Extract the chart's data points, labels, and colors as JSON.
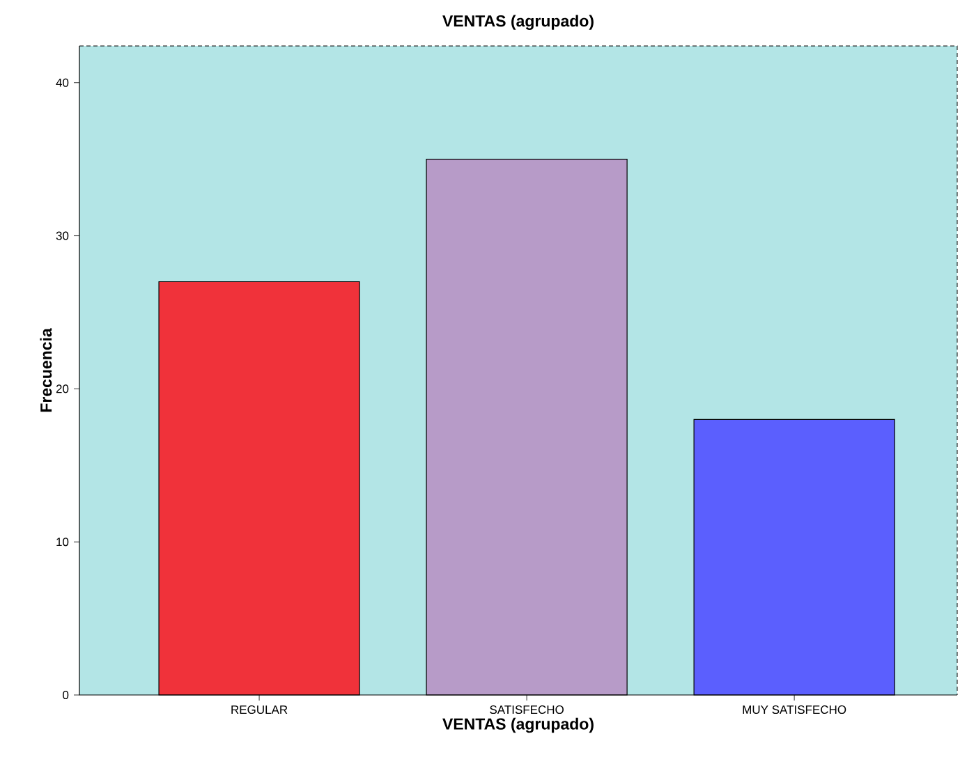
{
  "chart_data": {
    "type": "bar",
    "title": "VENTAS (agrupado)",
    "xlabel": "VENTAS (agrupado)",
    "ylabel": "Frecuencia",
    "categories": [
      "REGULAR",
      "SATISFECHO",
      "MUY SATISFECHO"
    ],
    "values": [
      27,
      35,
      18
    ],
    "colors": [
      "#f0323a",
      "#b79bc8",
      "#5b5ffe"
    ],
    "ylim": [
      0,
      42.4
    ],
    "yticks": [
      0,
      10,
      20,
      30,
      40
    ],
    "grid": false
  }
}
